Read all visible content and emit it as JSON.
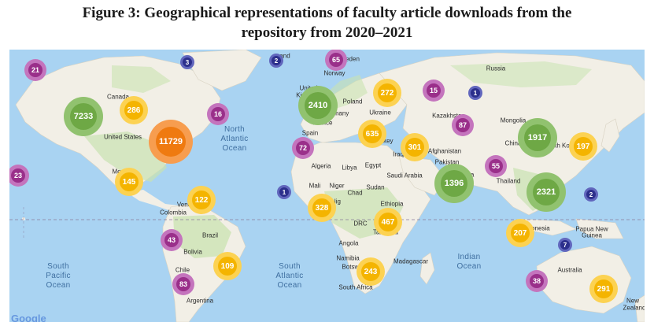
{
  "figure": {
    "title_line1": "Figure 3: Geographical representations of faculty article downloads from the",
    "title_line2": "repository from 2020–2021"
  },
  "map": {
    "ocean_labels": {
      "north_atlantic": [
        "North",
        "Atlantic",
        "Ocean"
      ],
      "south_atlantic": [
        "South",
        "Atlantic",
        "Ocean"
      ],
      "south_pacific": [
        "South",
        "Pacific",
        "Ocean"
      ],
      "indian": [
        "Indian",
        "Ocean"
      ]
    },
    "place_labels": {
      "canada": "Canada",
      "united_states": "United States",
      "mexico": "Mex",
      "venezuela": "Vene",
      "colombia": "Colombia",
      "brazil": "Brazil",
      "bolivia": "Bolivia",
      "chile": "Chile",
      "argentina": "Argentina",
      "iceland": "land",
      "sweden": "eden",
      "norway": "Norway",
      "united_kingdom": "United",
      "kingdom": "Kingdom",
      "poland": "Poland",
      "germany": "ermany",
      "france": "France",
      "ukraine": "Ukraine",
      "spain": "Spain",
      "turkey": "rkey",
      "iraq": "Iraq",
      "algeria": "Algeria",
      "libya": "Libya",
      "egypt": "Egypt",
      "saudi_arabia": "Saudi Arabia",
      "mali": "Mali",
      "niger": "Niger",
      "chad": "Chad",
      "sudan": "Sudan",
      "nigeria": "Nig",
      "ethiopia": "Ethiopia",
      "drc": "DRC",
      "tanzania": "Tanzania",
      "angola": "Angola",
      "namibia": "Namibia",
      "botswana": "Botswana",
      "madagascar": "Madagascar",
      "south_africa": "South Africa",
      "russia": "Russia",
      "kazakhstan": "Kazakhstan",
      "mongolia": "Mongolia",
      "china": "China",
      "south_korea": "uth Korea",
      "afghanistan": "Afghanistan",
      "pakistan": "Pakistan",
      "india": "dia",
      "thailand": "Thailand",
      "indonesia": "lonesia",
      "papua": "Papua New",
      "guinea": "Guinea",
      "australia": "Australia",
      "new_zealand": "New",
      "zealand": "Zealand",
      "greenland": "and"
    },
    "clusters": [
      {
        "value": "21",
        "tier": "purple"
      },
      {
        "value": "3",
        "tier": "navy"
      },
      {
        "value": "2",
        "tier": "navy"
      },
      {
        "value": "65",
        "tier": "purple"
      },
      {
        "value": "7233",
        "tier": "green"
      },
      {
        "value": "286",
        "tier": "yellow"
      },
      {
        "value": "11729",
        "tier": "orange"
      },
      {
        "value": "16",
        "tier": "purple"
      },
      {
        "value": "2410",
        "tier": "green"
      },
      {
        "value": "272",
        "tier": "yellow"
      },
      {
        "value": "15",
        "tier": "purple"
      },
      {
        "value": "1",
        "tier": "navy"
      },
      {
        "value": "87",
        "tier": "purple"
      },
      {
        "value": "635",
        "tier": "yellow"
      },
      {
        "value": "72",
        "tier": "purple"
      },
      {
        "value": "301",
        "tier": "yellow"
      },
      {
        "value": "1917",
        "tier": "green"
      },
      {
        "value": "197",
        "tier": "yellow"
      },
      {
        "value": "55",
        "tier": "purple"
      },
      {
        "value": "23",
        "tier": "purple"
      },
      {
        "value": "145",
        "tier": "yellow"
      },
      {
        "value": "1",
        "tier": "navy"
      },
      {
        "value": "1396",
        "tier": "green"
      },
      {
        "value": "2321",
        "tier": "green"
      },
      {
        "value": "2",
        "tier": "navy"
      },
      {
        "value": "122",
        "tier": "yellow"
      },
      {
        "value": "328",
        "tier": "yellow"
      },
      {
        "value": "467",
        "tier": "yellow"
      },
      {
        "value": "207",
        "tier": "yellow"
      },
      {
        "value": "7",
        "tier": "navy"
      },
      {
        "value": "43",
        "tier": "purple"
      },
      {
        "value": "109",
        "tier": "yellow"
      },
      {
        "value": "243",
        "tier": "yellow"
      },
      {
        "value": "83",
        "tier": "purple"
      },
      {
        "value": "38",
        "tier": "purple"
      },
      {
        "value": "291",
        "tier": "yellow"
      }
    ],
    "attribution": "Google",
    "colors": {
      "water": "#a9d3f2",
      "land": "#f2efe6",
      "forest": "#c9e3b0",
      "cluster_navy": "#2c2f8c",
      "cluster_purple": "#9a2f8a",
      "cluster_yellow": "#f4b400",
      "cluster_green": "#6ea845",
      "cluster_orange": "#ef7a10"
    }
  }
}
